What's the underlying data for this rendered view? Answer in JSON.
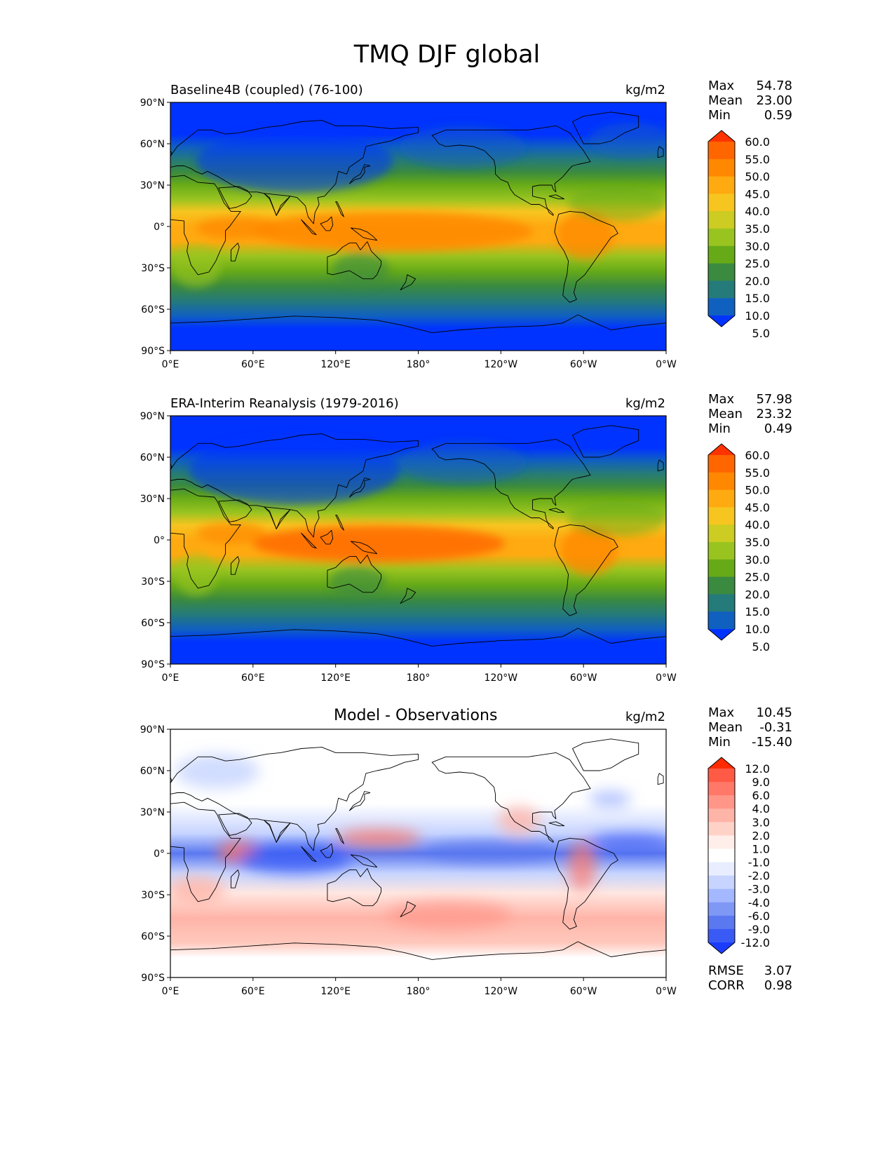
{
  "title": "TMQ DJF global",
  "lat_labels": [
    "90°N",
    "60°N",
    "30°N",
    "0°",
    "30°S",
    "60°S",
    "90°S"
  ],
  "lon_labels": [
    "0°E",
    "60°E",
    "120°E",
    "180°",
    "120°W",
    "60°W",
    "0°W"
  ],
  "panels": [
    {
      "title": "Baseline4B (coupled) (76-100)",
      "units": "kg/m2",
      "kind": "abs",
      "stats": {
        "max_label": "Max",
        "max": "54.78",
        "mean_label": "Mean",
        "mean": "23.00",
        "min_label": "Min",
        "min": "0.59"
      }
    },
    {
      "title": "ERA-Interim Reanalysis (1979-2016)",
      "units": "kg/m2",
      "kind": "abs2",
      "stats": {
        "max_label": "Max",
        "max": "57.98",
        "mean_label": "Mean",
        "mean": "23.32",
        "min_label": "Min",
        "min": "0.49"
      }
    },
    {
      "title": "Model - Observations",
      "units": "kg/m2",
      "kind": "diff",
      "stats": {
        "max_label": "Max",
        "max": "10.45",
        "mean_label": "Mean",
        "mean": "-0.31",
        "min_label": "Min",
        "min": "-15.40"
      },
      "extra": {
        "rmse_label": "RMSE",
        "rmse": "3.07",
        "corr_label": "CORR",
        "corr": "0.98"
      }
    }
  ],
  "colorbar_abs": {
    "labels": [
      "60.0",
      "55.0",
      "50.0",
      "45.0",
      "40.0",
      "35.0",
      "30.0",
      "25.0",
      "20.0",
      "15.0",
      "10.0",
      "5.0"
    ],
    "colors": [
      "#ff3300",
      "#ff6600",
      "#ff8800",
      "#ffaa11",
      "#f7c520",
      "#cccc22",
      "#99c420",
      "#66aa18",
      "#3a8a40",
      "#257a7a",
      "#1060c0",
      "#0033ff"
    ]
  },
  "colorbar_diff": {
    "labels": [
      "12.0",
      "9.0",
      "6.0",
      "4.0",
      "3.0",
      "2.0",
      "1.0",
      "-1.0",
      "-2.0",
      "-3.0",
      "-4.0",
      "-6.0",
      "-9.0",
      "-12.0"
    ],
    "colors": [
      "#ff2a00",
      "#ff5a46",
      "#ff7868",
      "#ff9688",
      "#ffb4a8",
      "#ffd2c8",
      "#ffeeea",
      "#ffffff",
      "#e8eeff",
      "#c6d4ff",
      "#a4b8ff",
      "#7f98f6",
      "#5a78f0",
      "#3a5af6",
      "#1b3cfb"
    ]
  },
  "colors": {
    "ocean_cold": "#0033ff"
  }
}
